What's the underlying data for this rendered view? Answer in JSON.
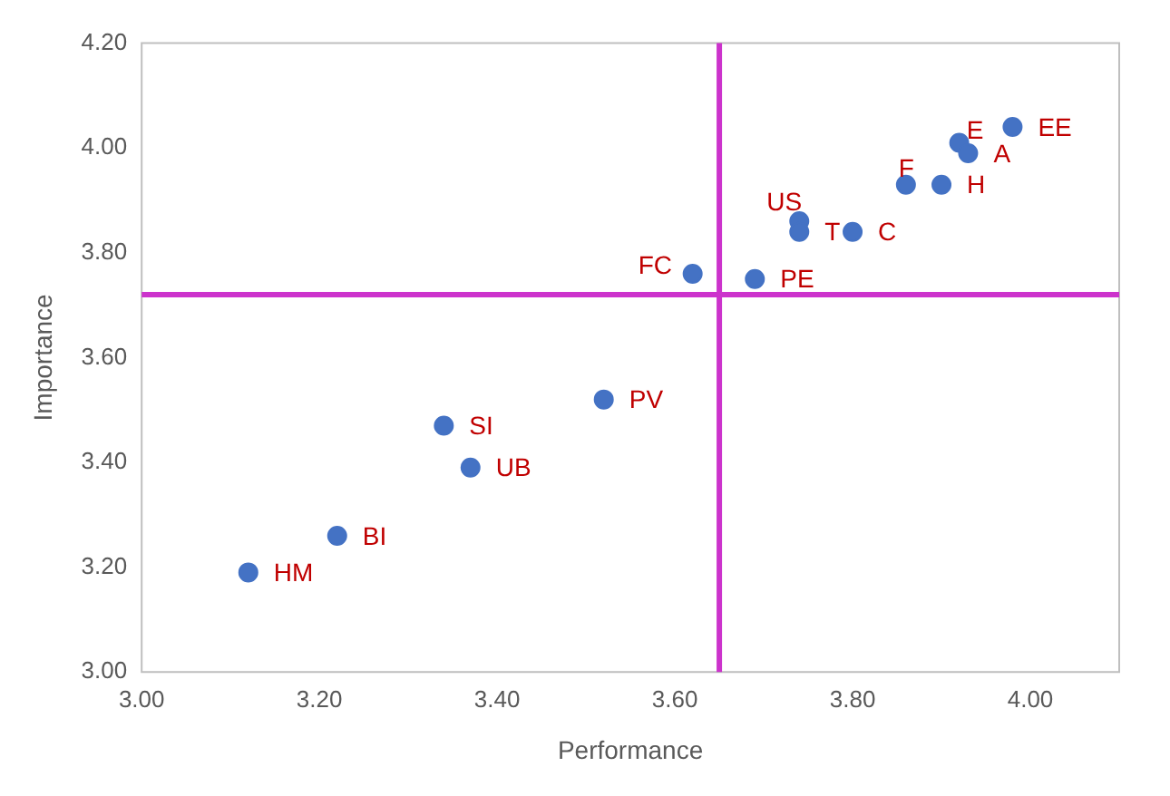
{
  "chart_data": {
    "type": "scatter",
    "xlabel": "Performance",
    "ylabel": "Importance",
    "series": [
      {
        "color": "#4472c4",
        "x": [
          3.98,
          3.92,
          3.93,
          3.86,
          3.9,
          3.74,
          3.74,
          3.8,
          3.62,
          3.69,
          3.52,
          3.34,
          3.37,
          3.22,
          3.12
        ],
        "values": [
          4.04,
          4.01,
          3.99,
          3.93,
          3.93,
          3.86,
          3.84,
          3.84,
          3.76,
          3.75,
          3.52,
          3.47,
          3.39,
          3.26,
          3.19
        ],
        "value_labels": [
          "EE",
          "E",
          "A",
          "F",
          "H",
          "US",
          "T",
          "C",
          "FC",
          "PE",
          "PV",
          "SI",
          "UB",
          "BI",
          "HM"
        ]
      }
    ],
    "marker": "circle",
    "xlim": [
      3.0,
      4.1
    ],
    "xticks": [
      {
        "value": 3.0,
        "label": "3.00"
      },
      {
        "value": 3.2,
        "label": "3.20"
      },
      {
        "value": 3.4,
        "label": "3.40"
      },
      {
        "value": 3.6,
        "label": "3.60"
      },
      {
        "value": 3.8,
        "label": "3.80"
      },
      {
        "value": 4.0,
        "label": "4.00"
      }
    ],
    "ylim": [
      3.0,
      4.2
    ],
    "yticks": [
      {
        "value": 3.0,
        "label": "3.00"
      },
      {
        "value": 3.2,
        "label": "3.20"
      },
      {
        "value": 3.4,
        "label": "3.40"
      },
      {
        "value": 3.6,
        "label": "3.60"
      },
      {
        "value": 3.8,
        "label": "3.80"
      },
      {
        "value": 4.0,
        "label": "4.00"
      },
      {
        "value": 4.2,
        "label": "4.20"
      }
    ],
    "ref_lines": [
      {
        "axis": "x",
        "value": 3.65,
        "color": "#cc33cc"
      },
      {
        "axis": "y",
        "value": 3.72,
        "color": "#cc33cc"
      }
    ],
    "grid": false,
    "legend": false
  }
}
